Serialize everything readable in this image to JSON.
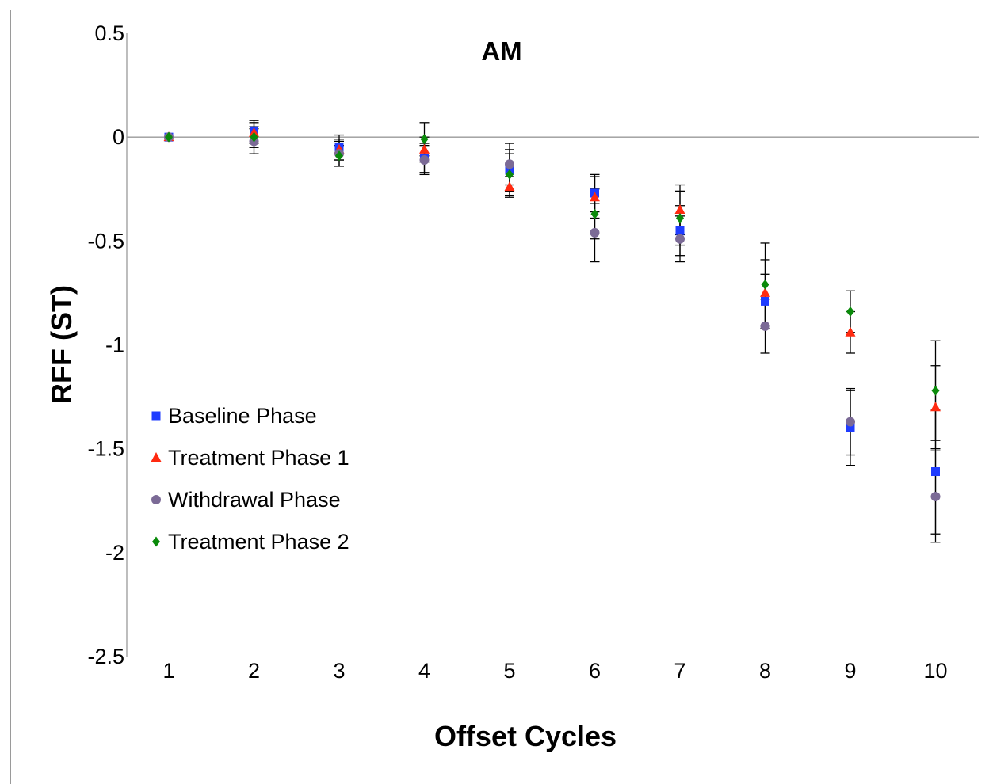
{
  "chart_data": {
    "type": "scatter",
    "title": "AM",
    "xlabel": "Offset Cycles",
    "ylabel": "RFF (ST)",
    "x": [
      1,
      2,
      3,
      4,
      5,
      6,
      7,
      8,
      9,
      10
    ],
    "xticks": [
      "1",
      "2",
      "3",
      "4",
      "5",
      "6",
      "7",
      "8",
      "9",
      "10"
    ],
    "ylim": [
      -2.5,
      0.5
    ],
    "yticks": [
      "0.5",
      "0",
      "-0.5",
      "-1",
      "-1.5",
      "-2",
      "-2.5"
    ],
    "grid": false,
    "legend_position": "lower-left",
    "series": [
      {
        "name": "Baseline Phase",
        "marker": "square",
        "color": "#1f3cff",
        "values": [
          0.0,
          0.03,
          -0.05,
          -0.1,
          -0.16,
          -0.27,
          -0.45,
          -0.79,
          -1.4,
          -1.61
        ],
        "errors": [
          0.01,
          0.05,
          0.06,
          0.07,
          0.1,
          0.09,
          0.12,
          0.13,
          0.18,
          0.3
        ]
      },
      {
        "name": "Treatment Phase 1",
        "marker": "triangle",
        "color": "#ff2a10",
        "values": [
          0.0,
          0.02,
          -0.06,
          -0.06,
          -0.24,
          -0.29,
          -0.35,
          -0.75,
          -0.94,
          -1.3
        ],
        "errors": [
          0.01,
          0.05,
          0.05,
          0.06,
          0.05,
          0.1,
          0.12,
          0.16,
          0.1,
          0.2
        ]
      },
      {
        "name": "Withdrawal Phase",
        "marker": "circle",
        "color": "#7b6a96",
        "values": [
          0.0,
          -0.02,
          -0.08,
          -0.11,
          -0.13,
          -0.46,
          -0.49,
          -0.91,
          -1.37,
          -1.73
        ],
        "errors": [
          0.01,
          0.06,
          0.06,
          0.07,
          0.1,
          0.14,
          0.11,
          0.13,
          0.16,
          0.22
        ]
      },
      {
        "name": "Treatment Phase 2",
        "marker": "diamond",
        "color": "#0a8a0a",
        "values": [
          0.0,
          0.0,
          -0.09,
          -0.01,
          -0.18,
          -0.37,
          -0.39,
          -0.71,
          -0.84,
          -1.22
        ],
        "errors": [
          0.01,
          0.05,
          0.05,
          0.08,
          0.1,
          0.12,
          0.13,
          0.2,
          0.1,
          0.24
        ]
      }
    ]
  }
}
